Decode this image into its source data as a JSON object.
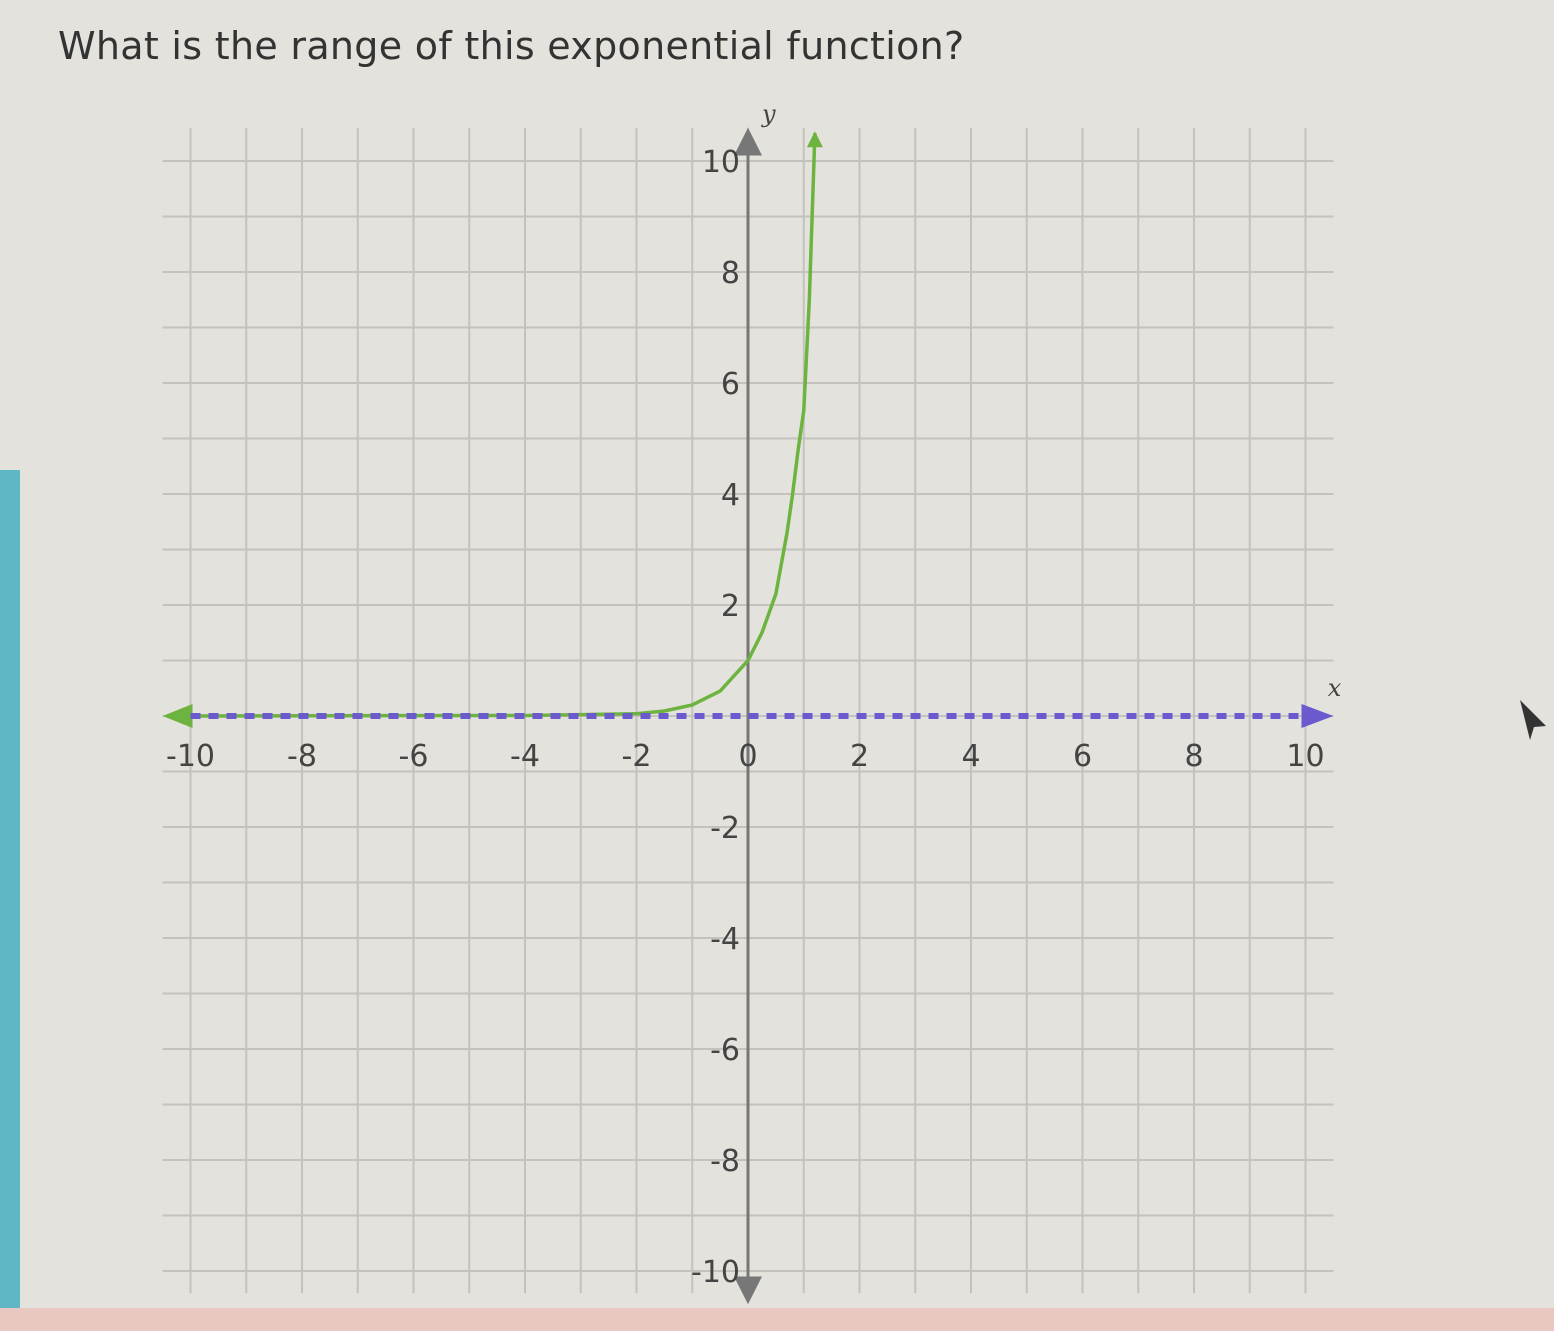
{
  "question": "What is the range of this exponential function?",
  "chart_data": {
    "type": "line",
    "title": "",
    "xlabel": "x",
    "ylabel": "y",
    "xlim": [
      -10,
      10
    ],
    "ylim": [
      -10,
      10
    ],
    "grid": true,
    "grid_step": 1,
    "x_ticks": [
      "-10",
      "-8",
      "-6",
      "-4",
      "-2",
      "0",
      "2",
      "4",
      "6",
      "8",
      "10"
    ],
    "y_ticks": [
      "10",
      "8",
      "6",
      "4",
      "2",
      "-2",
      "-4",
      "-6",
      "-8",
      "-10"
    ],
    "series": [
      {
        "color": "#6db33f",
        "style": "solid",
        "points": [
          [
            -10,
            0
          ],
          [
            -4,
            0.01
          ],
          [
            -2,
            0.04
          ],
          [
            -1.5,
            0.09
          ],
          [
            -1,
            0.2
          ],
          [
            -0.5,
            0.45
          ],
          [
            0,
            1
          ],
          [
            0.25,
            1.5
          ],
          [
            0.5,
            2.2
          ],
          [
            0.7,
            3.3
          ],
          [
            0.8,
            4
          ],
          [
            0.9,
            4.8
          ],
          [
            1,
            5.5
          ],
          [
            1.05,
            6.5
          ],
          [
            1.1,
            7.5
          ],
          [
            1.15,
            9
          ],
          [
            1.2,
            10.5
          ]
        ],
        "arrows": "both"
      },
      {
        "color": "#6a5acd",
        "style": "dashed",
        "equation": "y = 0",
        "points": [
          [
            -10,
            0
          ],
          [
            10,
            0
          ]
        ],
        "arrows": "both"
      }
    ],
    "colors": {
      "axis": "#777777",
      "grid": "#c4c2bc",
      "curve": "#6db33f",
      "asymptote": "#6a5acd"
    }
  }
}
